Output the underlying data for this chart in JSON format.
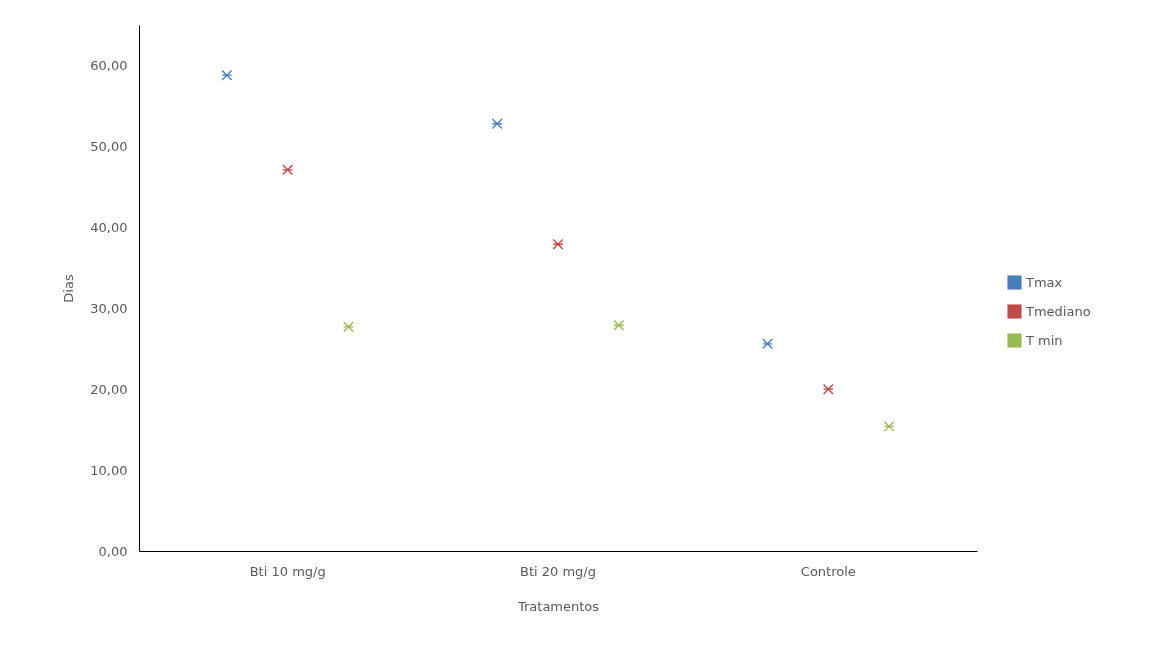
{
  "chart_data": {
    "type": "scatter",
    "xlabel": "Tratamentos",
    "ylabel": "Dias",
    "categories": [
      "Bti 10 mg/g",
      "Bti 20 mg/g",
      "Controle"
    ],
    "series": [
      {
        "name": "Tmax",
        "color": "#4a7ebb",
        "values": [
          58.8,
          52.8,
          25.6
        ]
      },
      {
        "name": "Tmediano",
        "color": "#be4b48",
        "values": [
          47.1,
          37.9,
          20.0
        ]
      },
      {
        "name": "T min",
        "color": "#98b954",
        "values": [
          27.7,
          27.9,
          15.4
        ]
      }
    ],
    "ylim": [
      0,
      65
    ],
    "yticks": [
      {
        "value": 0,
        "label": "0,00"
      },
      {
        "value": 10,
        "label": "10,00"
      },
      {
        "value": 20,
        "label": "20,00"
      },
      {
        "value": 30,
        "label": "30,00"
      },
      {
        "value": 40,
        "label": "40,00"
      },
      {
        "value": 50,
        "label": "50,00"
      },
      {
        "value": 60,
        "label": "60,00"
      }
    ],
    "grid": false,
    "legend": "right",
    "marker": "cross"
  }
}
